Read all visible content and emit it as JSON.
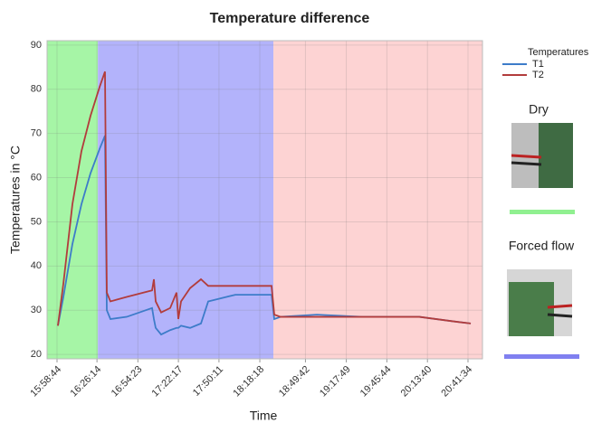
{
  "chart_data": {
    "type": "line",
    "title": "Temperature difference",
    "x_label": "Time",
    "y_label": "Temperatures in °C",
    "legend_title": "Temperatures",
    "annotations": [
      "Dry",
      "Forced flow"
    ],
    "x": [
      57561,
      57786,
      58160,
      58533,
      58907,
      59281,
      59505,
      59580,
      59729,
      60402,
      61449,
      61524,
      61598,
      61823,
      62197,
      62458,
      62533,
      62645,
      63019,
      63468,
      63767,
      64888,
      66383,
      66495,
      66757,
      68252,
      70121,
      72490,
      73859,
      74607
    ],
    "series": [
      {
        "name": "T1",
        "color": "#3d7cc9",
        "values": [
          26.5,
          33,
          45,
          54,
          61,
          66.5,
          69.5,
          30,
          28,
          28.5,
          30.5,
          28,
          26,
          24.5,
          25.5,
          26,
          26,
          26.5,
          26,
          27,
          32,
          33.5,
          33.5,
          28,
          28.5,
          29,
          28.5,
          28.5,
          27.5,
          27
        ]
      },
      {
        "name": "T2",
        "color": "#b23c3c",
        "values": [
          26.5,
          36,
          54,
          66,
          74,
          80.5,
          84,
          34,
          32,
          33,
          34.5,
          37,
          32,
          29.5,
          30.5,
          34,
          28,
          32,
          35,
          37,
          35.5,
          35.5,
          35.5,
          29,
          28.5,
          28.5,
          28.5,
          28.5,
          27.5,
          27
        ]
      }
    ],
    "regions": [
      {
        "start": 57113,
        "end": 59211,
        "color": "#a6f5a6"
      },
      {
        "start": 59211,
        "end": 66459,
        "color": "#b3b3fb"
      },
      {
        "start": 66459,
        "end": 75092,
        "color": "#fdd3d3"
      }
    ],
    "xlim": [
      57113,
      75092
    ],
    "ylim": [
      19,
      91
    ],
    "yticks": [
      20,
      30,
      40,
      50,
      60,
      70,
      80,
      90
    ],
    "xticks": [
      {
        "value": 57524,
        "label": "15:58:44"
      },
      {
        "value": 59174,
        "label": "16:26:14"
      },
      {
        "value": 60863,
        "label": "16:54:23"
      },
      {
        "value": 62537,
        "label": "17:22:17"
      },
      {
        "value": 64211,
        "label": "17:50:11"
      },
      {
        "value": 65898,
        "label": "18:18:18"
      },
      {
        "value": 67782,
        "label": "18:49:42"
      },
      {
        "value": 69469,
        "label": "19:17:49"
      },
      {
        "value": 71144,
        "label": "19:45:44"
      },
      {
        "value": 72820,
        "label": "20:13:40"
      },
      {
        "value": 74494,
        "label": "20:41:34"
      }
    ],
    "grid": true
  }
}
